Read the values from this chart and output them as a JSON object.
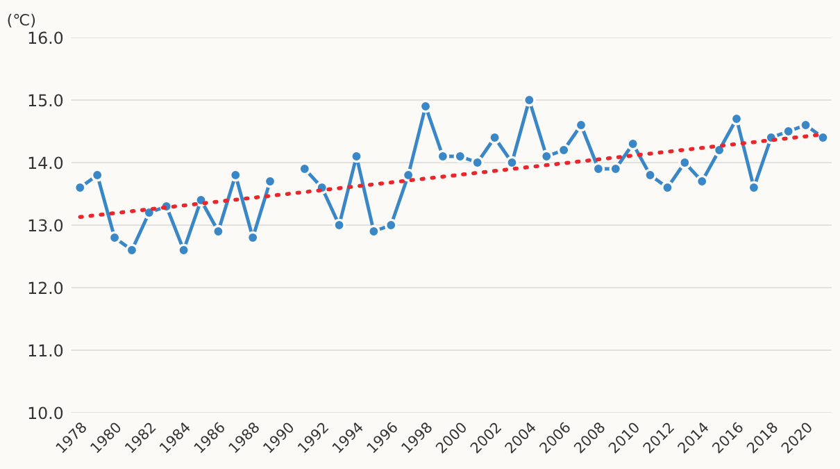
{
  "chart_data": {
    "type": "line",
    "ylabel": "(℃)",
    "x": [
      1978,
      1979,
      1980,
      1981,
      1982,
      1983,
      1984,
      1985,
      1986,
      1987,
      1988,
      1989,
      1990,
      1991,
      1992,
      1993,
      1994,
      1995,
      1996,
      1997,
      1998,
      1999,
      2000,
      2001,
      2002,
      2003,
      2004,
      2005,
      2006,
      2007,
      2008,
      2009,
      2010,
      2011,
      2012,
      2013,
      2014,
      2015,
      2016,
      2017,
      2018,
      2019,
      2020,
      2021
    ],
    "series": [
      {
        "color": "#3a87c8",
        "marker": "circle",
        "line_style": "solid",
        "values": [
          13.6,
          13.8,
          12.8,
          12.6,
          13.2,
          13.3,
          12.6,
          13.4,
          12.9,
          13.8,
          12.8,
          13.7,
          null,
          13.9,
          13.6,
          13.0,
          14.1,
          12.9,
          13.0,
          13.8,
          14.9,
          14.1,
          14.1,
          14.0,
          14.4,
          14.0,
          15.0,
          14.1,
          14.2,
          14.6,
          13.9,
          13.9,
          14.3,
          13.8,
          13.6,
          14.0,
          13.7,
          14.2,
          14.7,
          13.6,
          14.4,
          14.5,
          14.6,
          14.4
        ]
      },
      {
        "type": "line",
        "color": "#e8262b",
        "marker": "none",
        "line_style": "dotted",
        "x": [
          1978,
          2021
        ],
        "values": [
          13.13,
          14.45
        ]
      }
    ],
    "xlim": [
      1977.5,
      2021.5
    ],
    "xticks": [
      1978,
      1980,
      1982,
      1984,
      1986,
      1988,
      1990,
      1992,
      1994,
      1996,
      1998,
      2000,
      2002,
      2004,
      2006,
      2008,
      2010,
      2012,
      2014,
      2016,
      2018,
      2020
    ],
    "ylim": [
      10,
      16
    ],
    "yticks": [
      {
        "value": 10,
        "label": "10.0"
      },
      {
        "value": 11,
        "label": "11.0"
      },
      {
        "value": 12,
        "label": "12.0"
      },
      {
        "value": 13,
        "label": "13.0"
      },
      {
        "value": 14,
        "label": "14.0"
      },
      {
        "value": 15,
        "label": "15.0"
      },
      {
        "value": 16,
        "label": "16.0"
      }
    ],
    "grid": "y"
  }
}
